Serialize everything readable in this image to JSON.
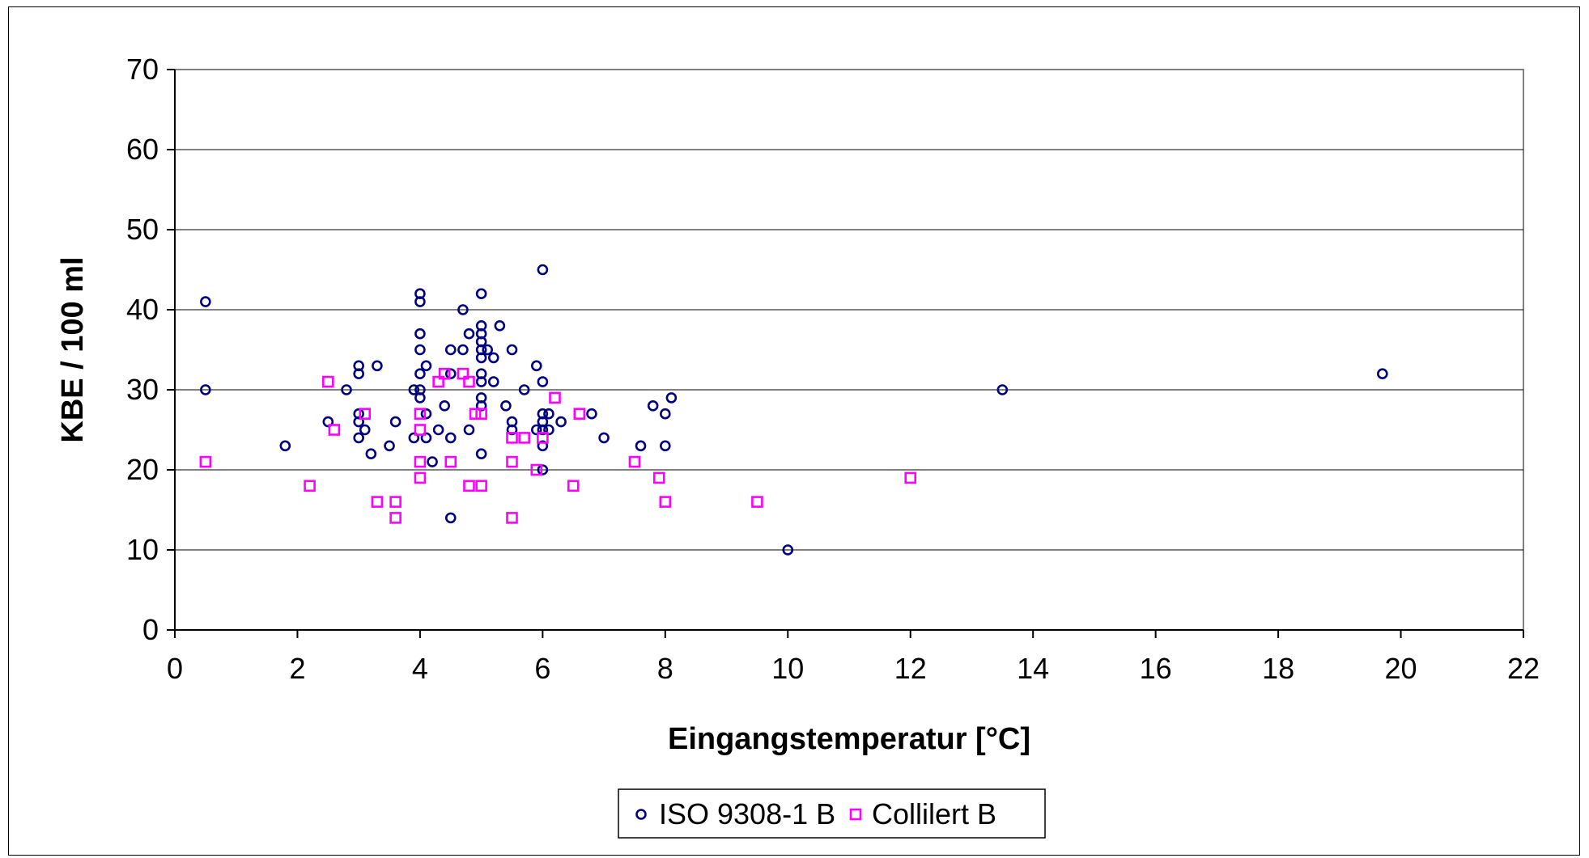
{
  "chart_data": {
    "type": "scatter",
    "title": "",
    "xlabel": "Eingangstemperatur [°C]",
    "ylabel": "KBE / 100 ml",
    "xlim": [
      0,
      22
    ],
    "ylim": [
      0,
      70
    ],
    "xticks": [
      0,
      2,
      4,
      6,
      8,
      10,
      12,
      14,
      16,
      18,
      20,
      22
    ],
    "yticks": [
      0,
      10,
      20,
      30,
      40,
      50,
      60,
      70
    ],
    "grid": "horizontal",
    "legend_position": "bottom",
    "series": [
      {
        "name": "ISO 9308-1 B",
        "color": "#000080",
        "marker": "circle",
        "points": [
          [
            0.5,
            41
          ],
          [
            0.5,
            30
          ],
          [
            1.8,
            23
          ],
          [
            2.5,
            26
          ],
          [
            2.8,
            30
          ],
          [
            3,
            33
          ],
          [
            3,
            32
          ],
          [
            3,
            27
          ],
          [
            3,
            26
          ],
          [
            3,
            24
          ],
          [
            3.1,
            25
          ],
          [
            3.2,
            22
          ],
          [
            3.3,
            33
          ],
          [
            3.5,
            23
          ],
          [
            3.6,
            26
          ],
          [
            3.9,
            30
          ],
          [
            3.9,
            24
          ],
          [
            4,
            42
          ],
          [
            4,
            41
          ],
          [
            4,
            37
          ],
          [
            4,
            35
          ],
          [
            4,
            32
          ],
          [
            4,
            30
          ],
          [
            4,
            29
          ],
          [
            4.1,
            33
          ],
          [
            4.1,
            27
          ],
          [
            4.1,
            24
          ],
          [
            4.2,
            21
          ],
          [
            4.3,
            25
          ],
          [
            4.4,
            28
          ],
          [
            4.5,
            35
          ],
          [
            4.5,
            32
          ],
          [
            4.5,
            24
          ],
          [
            4.5,
            14
          ],
          [
            4.7,
            40
          ],
          [
            4.7,
            35
          ],
          [
            4.8,
            37
          ],
          [
            4.8,
            25
          ],
          [
            5,
            42
          ],
          [
            5,
            38
          ],
          [
            5,
            37
          ],
          [
            5,
            36
          ],
          [
            5,
            35
          ],
          [
            5,
            34
          ],
          [
            5,
            32
          ],
          [
            5,
            31
          ],
          [
            5,
            29
          ],
          [
            5,
            28
          ],
          [
            5,
            22
          ],
          [
            5.1,
            35
          ],
          [
            5.2,
            34
          ],
          [
            5.2,
            31
          ],
          [
            5.3,
            38
          ],
          [
            5.4,
            28
          ],
          [
            5.5,
            35
          ],
          [
            5.5,
            26
          ],
          [
            5.5,
            25
          ],
          [
            5.7,
            30
          ],
          [
            5.9,
            33
          ],
          [
            5.9,
            25
          ],
          [
            6,
            45
          ],
          [
            6,
            31
          ],
          [
            6,
            27
          ],
          [
            6,
            26
          ],
          [
            6,
            25
          ],
          [
            6,
            23
          ],
          [
            6,
            20
          ],
          [
            6.1,
            27
          ],
          [
            6.1,
            25
          ],
          [
            6.3,
            26
          ],
          [
            6.8,
            27
          ],
          [
            7,
            24
          ],
          [
            7.6,
            23
          ],
          [
            7.8,
            28
          ],
          [
            8,
            27
          ],
          [
            8,
            23
          ],
          [
            8.1,
            29
          ],
          [
            10,
            10
          ],
          [
            13.5,
            30
          ],
          [
            19.7,
            32
          ]
        ]
      },
      {
        "name": "Collilert B",
        "color": "#ff00ff",
        "marker": "square",
        "points": [
          [
            0.5,
            21
          ],
          [
            2.2,
            18
          ],
          [
            2.5,
            31
          ],
          [
            2.6,
            25
          ],
          [
            3.1,
            27
          ],
          [
            3.3,
            16
          ],
          [
            3.6,
            16
          ],
          [
            3.6,
            14
          ],
          [
            4,
            27
          ],
          [
            4,
            25
          ],
          [
            4,
            21
          ],
          [
            4,
            19
          ],
          [
            4.3,
            31
          ],
          [
            4.4,
            32
          ],
          [
            4.5,
            21
          ],
          [
            4.7,
            32
          ],
          [
            4.8,
            31
          ],
          [
            4.8,
            18
          ],
          [
            4.9,
            27
          ],
          [
            5,
            27
          ],
          [
            5,
            18
          ],
          [
            5.5,
            24
          ],
          [
            5.5,
            21
          ],
          [
            5.5,
            14
          ],
          [
            5.7,
            24
          ],
          [
            5.9,
            20
          ],
          [
            6,
            24
          ],
          [
            6.2,
            29
          ],
          [
            6.5,
            18
          ],
          [
            6.6,
            27
          ],
          [
            7.5,
            21
          ],
          [
            7.9,
            19
          ],
          [
            8,
            16
          ],
          [
            9.5,
            16
          ],
          [
            12,
            19
          ]
        ]
      }
    ]
  }
}
